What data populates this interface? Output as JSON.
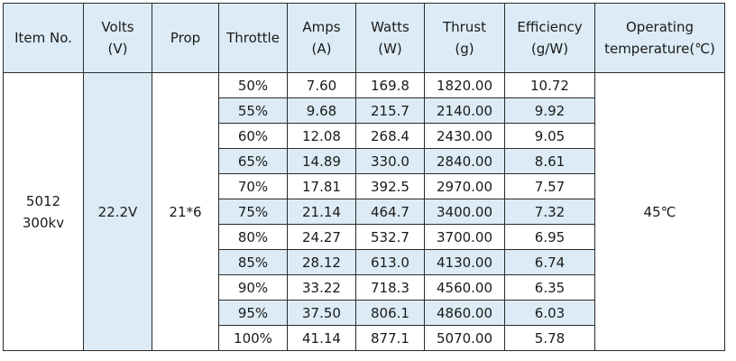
{
  "headers": [
    {
      "line1": "Item No.",
      "line2": ""
    },
    {
      "line1": "Volts",
      "line2": "(V)"
    },
    {
      "line1": "Prop",
      "line2": ""
    },
    {
      "line1": "Throttle",
      "line2": ""
    },
    {
      "line1": "Amps",
      "line2": "(A)"
    },
    {
      "line1": "Watts",
      "line2": "(W)"
    },
    {
      "line1": "Thrust",
      "line2": "(g)"
    },
    {
      "line1": "Efficiency",
      "line2": "(g/W)"
    },
    {
      "line1": "Operating",
      "line2": "temperature(℃)"
    }
  ],
  "item_no": {
    "line1": "5012",
    "line2": "300kv"
  },
  "volts": "22.2V",
  "prop": "21*6",
  "operating_temperature": "45℃",
  "rows": [
    {
      "throttle": "50%",
      "amps": "7.60",
      "watts": "169.8",
      "thrust": "1820.00",
      "efficiency": "10.72"
    },
    {
      "throttle": "55%",
      "amps": "9.68",
      "watts": "215.7",
      "thrust": "2140.00",
      "efficiency": "9.92"
    },
    {
      "throttle": "60%",
      "amps": "12.08",
      "watts": "268.4",
      "thrust": "2430.00",
      "efficiency": "9.05"
    },
    {
      "throttle": "65%",
      "amps": "14.89",
      "watts": "330.0",
      "thrust": "2840.00",
      "efficiency": "8.61"
    },
    {
      "throttle": "70%",
      "amps": "17.81",
      "watts": "392.5",
      "thrust": "2970.00",
      "efficiency": "7.57"
    },
    {
      "throttle": "75%",
      "amps": "21.14",
      "watts": "464.7",
      "thrust": "3400.00",
      "efficiency": "7.32"
    },
    {
      "throttle": "80%",
      "amps": "24.27",
      "watts": "532.7",
      "thrust": "3700.00",
      "efficiency": "6.95"
    },
    {
      "throttle": "85%",
      "amps": "28.12",
      "watts": "613.0",
      "thrust": "4130.00",
      "efficiency": "6.74"
    },
    {
      "throttle": "90%",
      "amps": "33.22",
      "watts": "718.3",
      "thrust": "4560.00",
      "efficiency": "6.35"
    },
    {
      "throttle": "95%",
      "amps": "37.50",
      "watts": "806.1",
      "thrust": "4860.00",
      "efficiency": "6.03"
    },
    {
      "throttle": "100%",
      "amps": "41.14",
      "watts": "877.1",
      "thrust": "5070.00",
      "efficiency": "5.78"
    }
  ]
}
